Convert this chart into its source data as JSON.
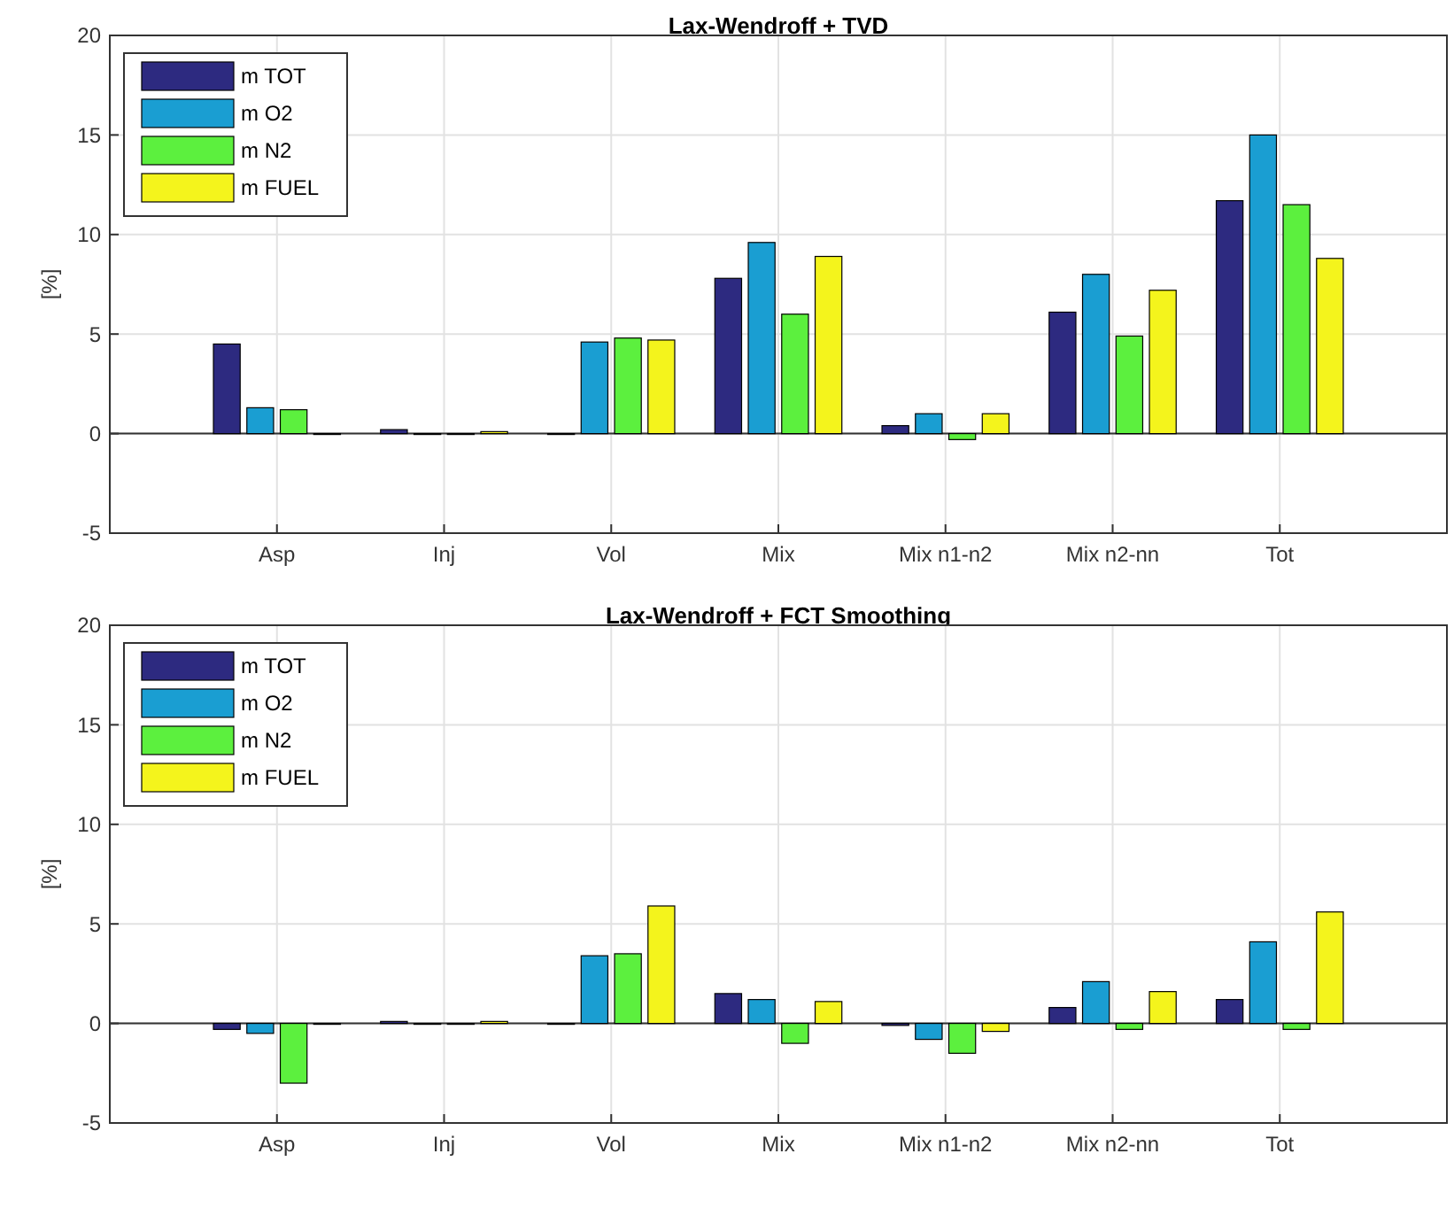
{
  "chart_data": [
    {
      "type": "bar",
      "title": "Lax-Wendroff + TVD",
      "ylabel": "[%]",
      "categories": [
        "Asp",
        "Inj",
        "Vol",
        "Mix",
        "Mix n1-n2",
        "Mix n2-nn",
        "Tot"
      ],
      "ylim": [
        -5,
        20
      ],
      "yticks": [
        -5,
        0,
        5,
        10,
        15,
        20
      ],
      "grid": true,
      "legend": "top left",
      "series": [
        {
          "name": "m TOT",
          "color": "#2d2a80",
          "values": [
            4.5,
            0.2,
            0,
            7.8,
            0.4,
            6.1,
            11.7
          ]
        },
        {
          "name": "m O2",
          "color": "#1a9ed2",
          "values": [
            1.3,
            0,
            4.6,
            9.6,
            1.0,
            8.0,
            15.0
          ]
        },
        {
          "name": "m N2",
          "color": "#5cf03e",
          "values": [
            1.2,
            0,
            4.8,
            6.0,
            -0.3,
            4.9,
            11.5
          ]
        },
        {
          "name": "m FUEL",
          "color": "#f4f41c",
          "values": [
            0,
            0.1,
            4.7,
            8.9,
            1.0,
            7.2,
            8.8
          ]
        }
      ]
    },
    {
      "type": "bar",
      "title": "Lax-Wendroff + FCT Smoothing",
      "ylabel": "[%]",
      "categories": [
        "Asp",
        "Inj",
        "Vol",
        "Mix",
        "Mix n1-n2",
        "Mix n2-nn",
        "Tot"
      ],
      "ylim": [
        -5,
        20
      ],
      "yticks": [
        -5,
        0,
        5,
        10,
        15,
        20
      ],
      "grid": true,
      "legend": "top left",
      "series": [
        {
          "name": "m TOT",
          "color": "#2d2a80",
          "values": [
            -0.3,
            0.1,
            0,
            1.5,
            -0.1,
            0.8,
            1.2
          ]
        },
        {
          "name": "m O2",
          "color": "#1a9ed2",
          "values": [
            -0.5,
            0,
            3.4,
            1.2,
            -0.8,
            2.1,
            4.1
          ]
        },
        {
          "name": "m N2",
          "color": "#5cf03e",
          "values": [
            -3.0,
            0,
            3.5,
            -1.0,
            -1.5,
            -0.3,
            -0.3
          ]
        },
        {
          "name": "m FUEL",
          "color": "#f4f41c",
          "values": [
            0,
            0.1,
            5.9,
            1.1,
            -0.4,
            1.6,
            5.6
          ]
        }
      ]
    }
  ]
}
